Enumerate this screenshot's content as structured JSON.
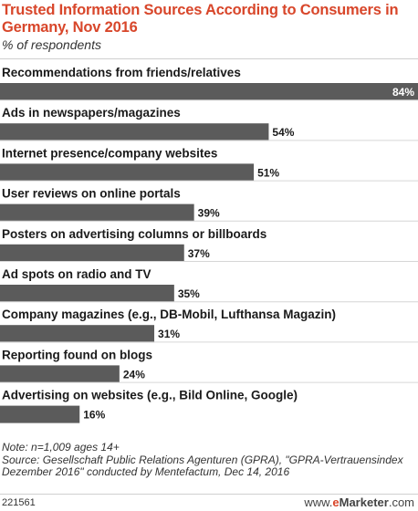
{
  "header": {
    "title": "Trusted Information Sources According to Consumers in Germany, Nov 2016",
    "subtitle": "% of respondents"
  },
  "chart_data": {
    "type": "bar",
    "orientation": "horizontal",
    "title": "Trusted Information Sources According to Consumers in Germany, Nov 2016",
    "subtitle": "% of respondents",
    "xlim": [
      0,
      84
    ],
    "categories": [
      "Recommendations from friends/relatives",
      "Ads in newspapers/magazines",
      "Internet presence/company websites",
      "User reviews on online portals",
      "Posters on advertising columns or billboards",
      "Ad spots on radio and TV",
      "Company magazines (e.g., DB-Mobil, Lufthansa Magazin)",
      "Reporting found on blogs",
      "Advertising on websites (e.g., Bild Online, Google)"
    ],
    "values": [
      84,
      54,
      51,
      39,
      37,
      35,
      31,
      24,
      16
    ],
    "value_labels": [
      "84%",
      "54%",
      "51%",
      "39%",
      "37%",
      "35%",
      "31%",
      "24%",
      "16%"
    ],
    "bar_color": "#5b5b5b"
  },
  "footer": {
    "note": "Note: n=1,009 ages 14+",
    "source": "Source: Gesellschaft Public Relations Agenturen (GPRA), \"GPRA-Vertrauensindex Dezember 2016\" conducted by Mentefactum, Dec 14, 2016",
    "chart_id": "221561",
    "brand_prefix": "www.",
    "brand_e": "e",
    "brand_name": "Marketer",
    "brand_suffix": ".com"
  }
}
